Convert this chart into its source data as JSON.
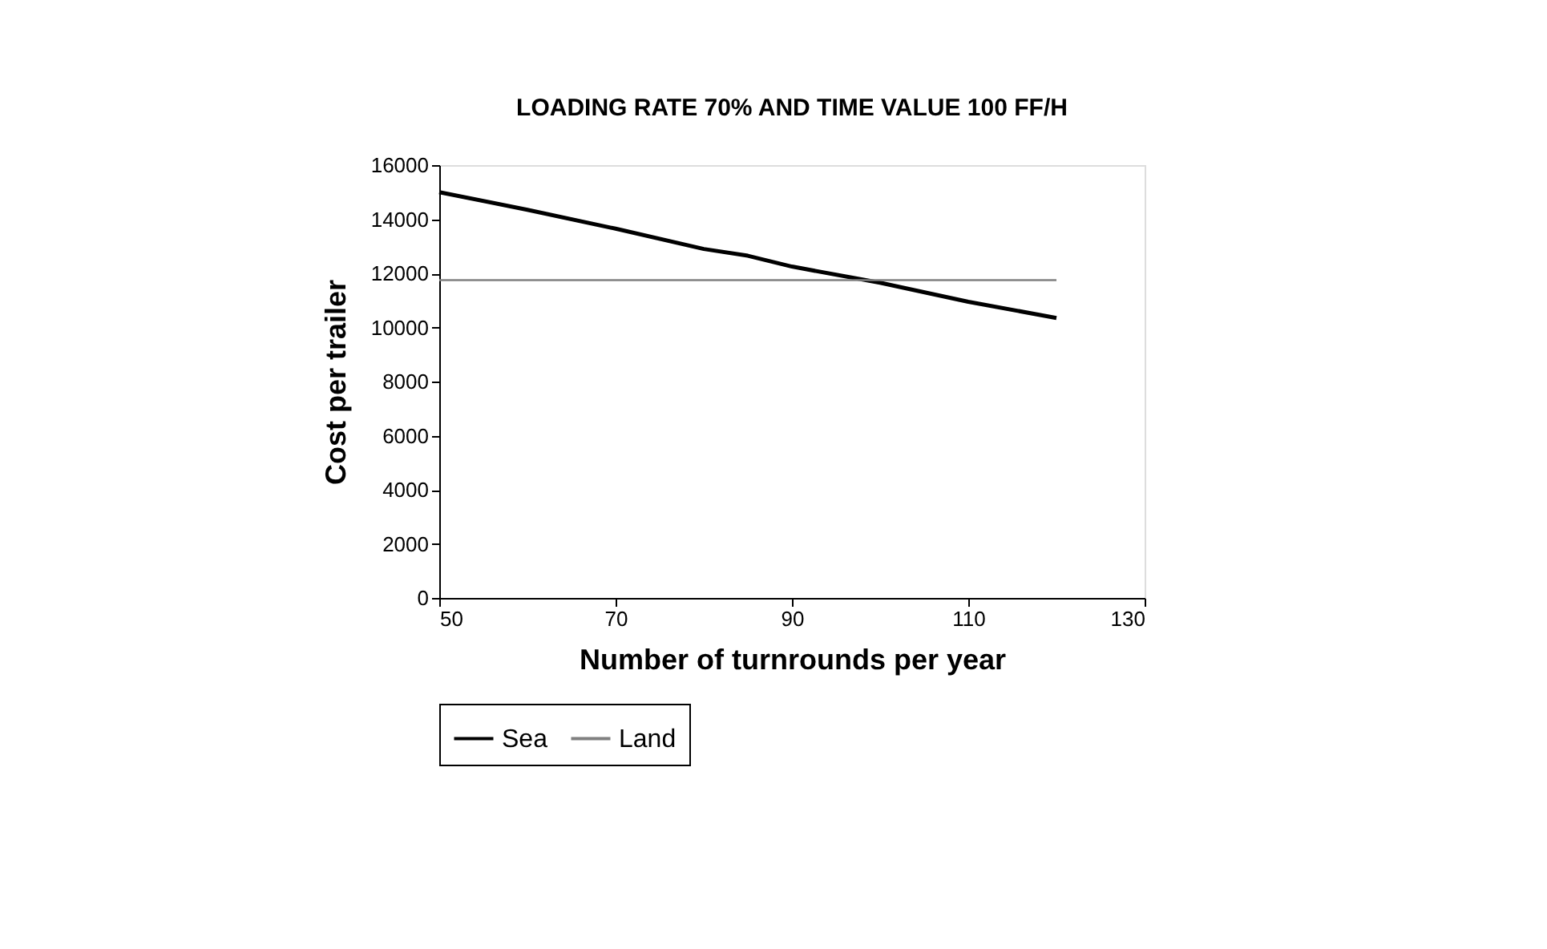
{
  "chart_data": {
    "type": "line",
    "title": "LOADING RATE 70% AND TIME VALUE 100 FF/H",
    "xlabel": "Number of turnrounds per year",
    "ylabel": "Cost per trailer",
    "xlim": [
      50,
      130
    ],
    "xticks": [
      50,
      70,
      90,
      110,
      130
    ],
    "ylim": [
      0,
      16000
    ],
    "yticks": [
      0,
      2000,
      4000,
      6000,
      8000,
      10000,
      12000,
      14000,
      16000
    ],
    "grid": false,
    "legend": "bottom",
    "marker": "none",
    "line_style": "solid",
    "series": [
      {
        "name": "Sea",
        "color": "#000000",
        "x": [
          50,
          60,
          70,
          80,
          85,
          90,
          100,
          110,
          120
        ],
        "values": [
          15000,
          14350,
          13650,
          12900,
          12650,
          12250,
          11650,
          10950,
          10350
        ]
      },
      {
        "name": "Land",
        "color": "#808080",
        "x": [
          50,
          120
        ],
        "values": [
          11750,
          11750
        ]
      }
    ]
  }
}
